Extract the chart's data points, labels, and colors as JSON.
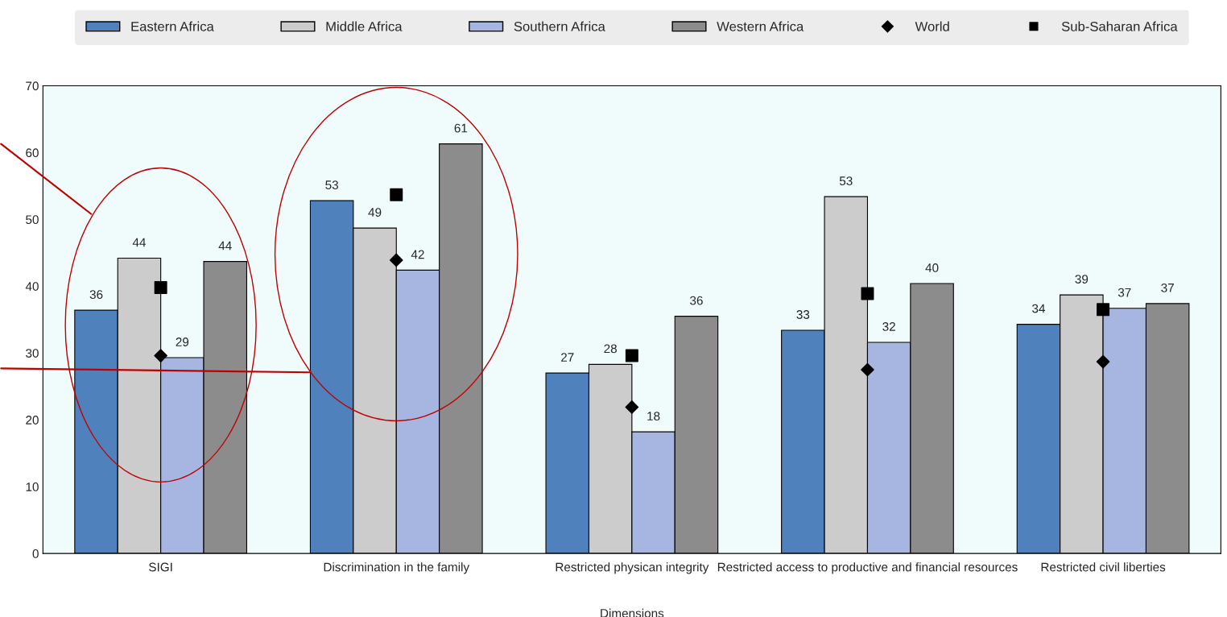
{
  "chart_data": {
    "type": "bar",
    "xlabel": "Dimensions",
    "categories": [
      "SIGI",
      "Discrimination in the family",
      "Restricted physican integrity",
      "Restricted access to productive and financial resources",
      "Restricted civil liberties"
    ],
    "series": [
      {
        "name": "Eastern Africa",
        "color": "#4f81bd",
        "values": [
          36.4,
          52.8,
          27.0,
          33.4,
          34.3
        ],
        "value_labels": [
          "36",
          "53",
          "27",
          "33",
          "34"
        ]
      },
      {
        "name": "Middle Africa",
        "color": "#cccccc",
        "values": [
          44.2,
          48.7,
          28.3,
          53.4,
          38.7
        ],
        "value_labels": [
          "44",
          "49",
          "28",
          "53",
          "39"
        ]
      },
      {
        "name": "Southern Africa",
        "color": "#a6b6e0",
        "values": [
          29.3,
          42.4,
          18.2,
          31.6,
          36.7
        ],
        "value_labels": [
          "29",
          "42",
          "18",
          "32",
          "37"
        ]
      },
      {
        "name": "Western Africa",
        "color": "#8c8c8c",
        "values": [
          43.7,
          61.3,
          35.5,
          40.4,
          37.4
        ],
        "value_labels": [
          "44",
          "61",
          "36",
          "40",
          "37"
        ]
      },
      {
        "name": "World",
        "type": "scatter",
        "marker": "diamond",
        "color": "#000000",
        "values": [
          29.6,
          43.9,
          21.9,
          27.5,
          28.7
        ]
      },
      {
        "name": "Sub-Saharan Africa",
        "type": "scatter",
        "marker": "square",
        "color": "#000000",
        "values": [
          39.8,
          53.7,
          29.6,
          38.9,
          36.5
        ]
      }
    ],
    "ylim": [
      0,
      70
    ],
    "yticks": [
      0,
      10,
      20,
      30,
      40,
      50,
      60,
      70
    ],
    "grid": false,
    "legend": "top"
  }
}
